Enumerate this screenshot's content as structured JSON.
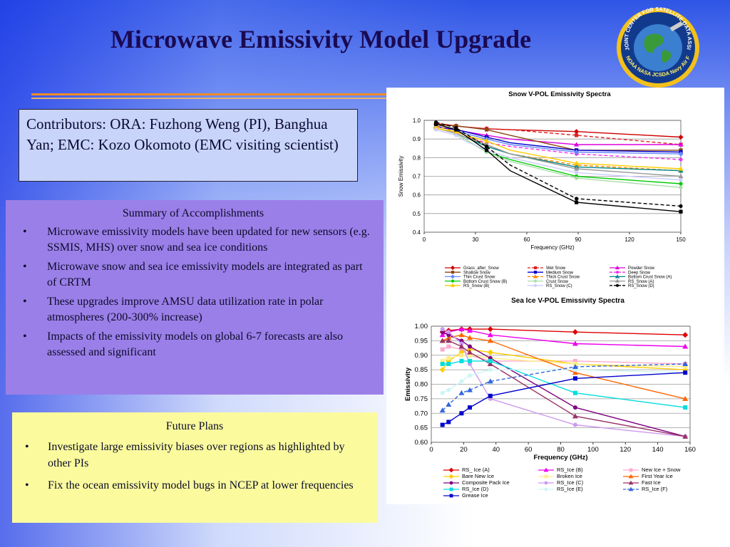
{
  "slide": {
    "title": "Microwave Emissivity Model Upgrade",
    "logo_text": "JOINT CENTER FOR SATELLITE DATA ASSIMILATION",
    "logo_bottom": "NOAA NASA JCSDA Navy Air Force"
  },
  "contributors": {
    "text": "Contributors: ORA: Fuzhong Weng (PI), Banghua Yan; EMC: Kozo Okomoto (EMC visiting scientist)"
  },
  "summary": {
    "heading": "Summary of Accomplishments",
    "items": [
      "Microwave emissivity models have been updated for new sensors (e.g. SSMIS, MHS) over snow and sea ice conditions",
      "Microwave snow and sea ice emissivity models are integrated as part of CRTM",
      "These upgrades improve AMSU data utilization rate in polar atmospheres (200-300% increase)",
      "Impacts of the emissivity models on global 6-7 forecasts are also assessed and significant"
    ]
  },
  "future": {
    "heading": "Future Plans",
    "items": [
      "Investigate large emissivity biases over regions as highlighted by other PIs",
      "Fix the ocean emissivity model bugs in NCEP at lower frequencies"
    ]
  },
  "chart_data": [
    {
      "type": "line",
      "title": "Snow V-POL Emissivity Spectra",
      "xlabel": "Frequency (GHz)",
      "ylabel": "Snow Emissivity",
      "xlim": [
        0,
        150
      ],
      "ylim": [
        0.4,
        1.0
      ],
      "xticks": [
        "0",
        "30",
        "60",
        "90",
        "120",
        "150"
      ],
      "yticks": [
        "0.4",
        "0.5",
        "0.6",
        "0.7",
        "0.8",
        "0.9",
        "1.0"
      ],
      "grid": "horizontal",
      "legend": "bottom",
      "x": [
        6.9,
        10.7,
        18.7,
        23.8,
        36.5,
        50.3,
        89,
        150
      ],
      "series": [
        {
          "name": "Grass_after_Snow",
          "color": "#cc0000",
          "marker": "diamond",
          "dash": false,
          "values": [
            0.98,
            0.98,
            0.97,
            0.965,
            0.955,
            0.95,
            0.94,
            0.91
          ]
        },
        {
          "name": "Wet Snow",
          "color": "#dd2222",
          "marker": "square",
          "dash": true,
          "values": [
            0.98,
            0.975,
            0.97,
            0.965,
            0.955,
            0.95,
            0.92,
            0.87
          ]
        },
        {
          "name": "Powder Snow",
          "color": "#dd00dd",
          "marker": "triangle",
          "dash": false,
          "values": [
            0.97,
            0.96,
            0.95,
            0.94,
            0.92,
            0.9,
            0.87,
            0.87
          ]
        },
        {
          "name": "Shallow Snow",
          "color": "#8b4513",
          "marker": "square",
          "dash": false,
          "values": [
            0.98,
            0.975,
            0.97,
            0.965,
            0.95,
            0.92,
            0.84,
            0.84
          ]
        },
        {
          "name": "Medium Snow",
          "color": "#0000cc",
          "marker": "square",
          "dash": false,
          "values": [
            0.97,
            0.96,
            0.95,
            0.94,
            0.91,
            0.88,
            0.84,
            0.83
          ]
        },
        {
          "name": "Deep Snow",
          "color": "#ee33ee",
          "marker": "circle",
          "dash": true,
          "values": [
            0.96,
            0.95,
            0.93,
            0.91,
            0.88,
            0.86,
            0.82,
            0.79
          ]
        },
        {
          "name": "Thin Crust Snow",
          "color": "#6688ff",
          "marker": "diamond",
          "dash": false,
          "values": [
            0.96,
            0.95,
            0.94,
            0.93,
            0.9,
            0.87,
            0.83,
            0.82
          ]
        },
        {
          "name": "Thick Crust Snow",
          "color": "#ff8800",
          "marker": "triangle",
          "dash": true,
          "values": [
            0.97,
            0.96,
            0.94,
            0.92,
            0.87,
            0.82,
            0.76,
            0.73
          ]
        },
        {
          "name": "Bottom Crust Snow (A)",
          "color": "#008888",
          "marker": "triangle",
          "dash": false,
          "values": [
            0.96,
            0.95,
            0.93,
            0.91,
            0.86,
            0.82,
            0.75,
            0.73
          ]
        },
        {
          "name": "Bottom Crust Snow (B)",
          "color": "#00cc00",
          "marker": "circle",
          "dash": false,
          "values": [
            0.96,
            0.95,
            0.93,
            0.9,
            0.83,
            0.79,
            0.7,
            0.66
          ]
        },
        {
          "name": "Crust Snow",
          "color": "#aaddaa",
          "marker": "circle",
          "dash": false,
          "values": [
            0.96,
            0.95,
            0.93,
            0.9,
            0.83,
            0.78,
            0.69,
            0.64
          ]
        },
        {
          "name": "RS_Snow (A)",
          "color": "#999999",
          "marker": "triangle",
          "dash": false,
          "values": [
            0.96,
            0.95,
            0.93,
            0.91,
            0.87,
            0.82,
            0.74,
            0.7
          ]
        },
        {
          "name": "RS_Snow (B)",
          "color": "#ffcc00",
          "marker": "triangle",
          "dash": false,
          "values": [
            0.96,
            0.95,
            0.94,
            0.92,
            0.89,
            0.84,
            0.77,
            0.74
          ]
        },
        {
          "name": "RS_Snow (C)",
          "color": "#ccccff",
          "marker": "circle",
          "dash": false,
          "values": [
            0.95,
            0.94,
            0.92,
            0.89,
            0.84,
            0.8,
            0.72,
            0.68
          ]
        },
        {
          "name": "RS_Snow (D)",
          "color": "#000000",
          "marker": "circle",
          "dash": true,
          "values": [
            0.99,
            0.98,
            0.96,
            0.93,
            0.86,
            0.76,
            0.58,
            0.54
          ]
        },
        {
          "name": "",
          "color": "#000000",
          "marker": "square",
          "dash": false,
          "values": [
            0.98,
            0.97,
            0.95,
            0.92,
            0.84,
            0.73,
            0.56,
            0.51
          ]
        }
      ]
    },
    {
      "type": "line",
      "title": "Sea Ice V-POL Emissivity Spectra",
      "xlabel": "Frequency (GHz)",
      "ylabel": "Emissivity",
      "xlim": [
        0,
        160
      ],
      "ylim": [
        0.6,
        1.0
      ],
      "xticks": [
        "0",
        "20",
        "40",
        "60",
        "80",
        "100",
        "120",
        "140",
        "160"
      ],
      "yticks": [
        "0.60",
        "0.65",
        "0.70",
        "0.75",
        "0.80",
        "0.85",
        "0.90",
        "0.95",
        "1.00"
      ],
      "grid": "horizontal",
      "legend": "bottom",
      "x": [
        6.9,
        10.7,
        18.7,
        23.8,
        36.5,
        89,
        157
      ],
      "series": [
        {
          "name": "RS_ Ice (A)",
          "color": "#dd0000",
          "marker": "diamond",
          "dash": false,
          "values": [
            0.98,
            0.985,
            0.99,
            0.99,
            0.99,
            0.98,
            0.97
          ]
        },
        {
          "name": "RS_Ice (B)",
          "color": "#ee00ee",
          "marker": "triangle",
          "dash": false,
          "values": [
            0.97,
            0.98,
            0.99,
            0.985,
            0.97,
            0.94,
            0.93
          ]
        },
        {
          "name": "New Ice + Snow",
          "color": "#ffaacc",
          "marker": "square",
          "dash": false,
          "values": [
            0.92,
            0.93,
            0.92,
            0.9,
            0.88,
            0.88,
            0.87
          ]
        },
        {
          "name": "Bare New Ice",
          "color": "#ffcc00",
          "marker": "diamond",
          "dash": false,
          "values": [
            0.85,
            0.88,
            0.91,
            0.92,
            0.91,
            0.87,
            0.85
          ]
        },
        {
          "name": "Broken Ice",
          "color": "#ffee88",
          "marker": "square",
          "dash": false,
          "values": [
            0.88,
            0.89,
            0.9,
            0.9,
            0.89,
            0.87,
            0.86
          ]
        },
        {
          "name": "First Year Ice",
          "color": "#ff6600",
          "marker": "triangle",
          "dash": false,
          "values": [
            0.95,
            0.96,
            0.97,
            0.96,
            0.95,
            0.84,
            0.75
          ]
        },
        {
          "name": "Composite Pack Ice",
          "color": "#800080",
          "marker": "circle",
          "dash": false,
          "values": [
            0.98,
            0.97,
            0.95,
            0.93,
            0.89,
            0.72,
            0.62
          ]
        },
        {
          "name": "RS_Ice (C)",
          "color": "#cc99ee",
          "marker": "circle",
          "dash": false,
          "values": [
            0.99,
            0.98,
            0.94,
            0.87,
            0.75,
            0.66,
            0.62
          ]
        },
        {
          "name": "Fast Ice",
          "color": "#993366",
          "marker": "triangle",
          "dash": false,
          "values": [
            0.95,
            0.95,
            0.93,
            0.91,
            0.87,
            0.69,
            0.62
          ]
        },
        {
          "name": "RS_Ice (D)",
          "color": "#00dddd",
          "marker": "square",
          "dash": false,
          "values": [
            0.87,
            0.87,
            0.88,
            0.88,
            0.88,
            0.77,
            0.72
          ]
        },
        {
          "name": "RS_Ice (E)",
          "color": "#ccf5f5",
          "marker": "circle",
          "dash": false,
          "values": [
            0.77,
            0.78,
            0.81,
            0.83,
            0.85,
            0.85,
            0.84
          ]
        },
        {
          "name": "RS_Ice (F)",
          "color": "#3366dd",
          "marker": "triangle",
          "dash": true,
          "values": [
            0.71,
            0.73,
            0.77,
            0.78,
            0.81,
            0.86,
            0.87
          ]
        },
        {
          "name": "Grease Ice",
          "color": "#0000cc",
          "marker": "square",
          "dash": false,
          "values": [
            0.66,
            0.67,
            0.7,
            0.72,
            0.76,
            0.82,
            0.84
          ]
        }
      ]
    }
  ]
}
